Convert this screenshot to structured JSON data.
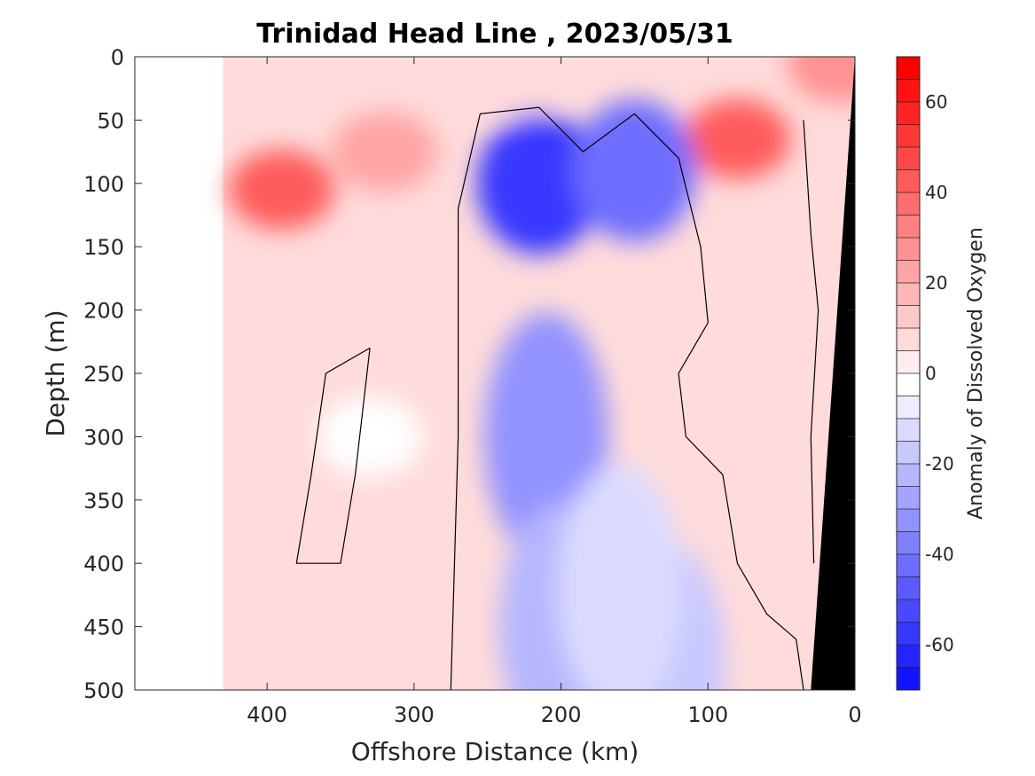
{
  "chart_data": {
    "type": "heatmap",
    "subtype": "filled-contour section",
    "title": "Trinidad Head Line , 2023/05/31",
    "xlabel": "Offshore Distance (km)",
    "ylabel": "Depth (m)",
    "xlim": [
      490,
      0
    ],
    "x_reversed": true,
    "ylim": [
      0,
      500
    ],
    "y_reversed": true,
    "xticks": [
      400,
      300,
      200,
      100,
      0
    ],
    "yticks": [
      0,
      50,
      100,
      150,
      200,
      250,
      300,
      350,
      400,
      450,
      500
    ],
    "colorbar": {
      "label": "Anomaly of Dissolved Oxygen",
      "range": [
        -70,
        70
      ],
      "step": 5,
      "ticks": [
        60,
        40,
        20,
        0,
        -20,
        -40,
        -60
      ],
      "negative_color": "#0000ff",
      "zero_color": "#ffffff",
      "positive_color": "#ff0000"
    },
    "data_extent_x": [
      0,
      430
    ],
    "zero_contour": "black line",
    "features": [
      {
        "x": 390,
        "depth": 105,
        "anomaly": 45
      },
      {
        "x": 320,
        "depth": 75,
        "anomaly": 25
      },
      {
        "x": 230,
        "depth": 20,
        "anomaly": 10
      },
      {
        "x": 80,
        "depth": 65,
        "anomaly": 45
      },
      {
        "x": 10,
        "depth": 5,
        "anomaly": 30
      },
      {
        "x": 215,
        "depth": 100,
        "anomaly": -55
      },
      {
        "x": 150,
        "depth": 90,
        "anomaly": -40
      },
      {
        "x": 210,
        "depth": 300,
        "anomaly": -30
      },
      {
        "x": 200,
        "depth": 450,
        "anomaly": -20
      },
      {
        "x": 130,
        "depth": 480,
        "anomaly": -15
      },
      {
        "x": 330,
        "depth": 300,
        "anomaly": 0
      },
      {
        "x": 160,
        "depth": 420,
        "anomaly": -8
      }
    ],
    "seafloor_color": "#000000"
  }
}
